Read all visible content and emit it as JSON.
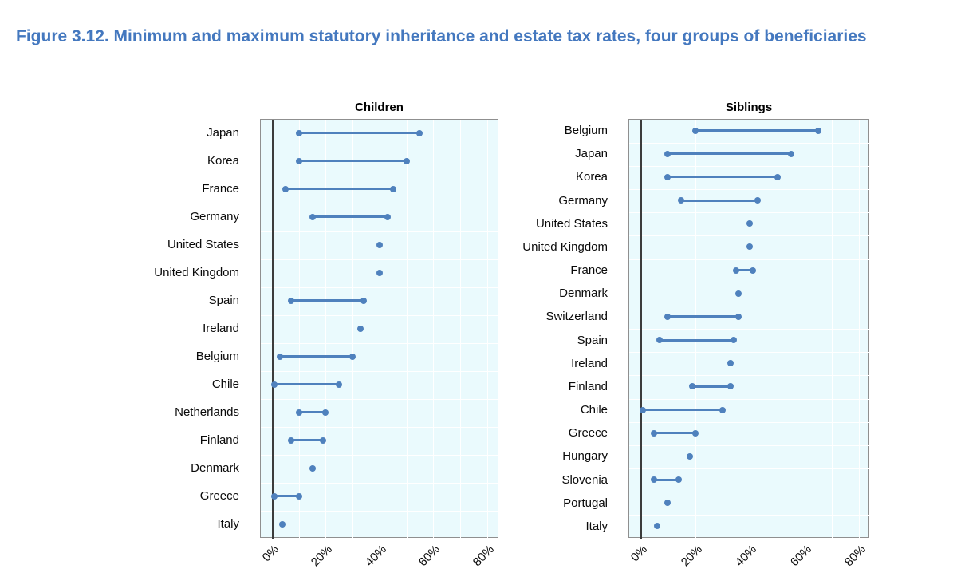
{
  "title": "Figure 3.12. Minimum and maximum statutory inheritance and estate tax rates, four groups of beneficiaries",
  "colors": {
    "title_blue": "#4478bf",
    "bar_blue": "#4f81bd",
    "plot_background": "#eafafd",
    "plot_border": "#8f8f8f",
    "axis_line": "#3c3c3c",
    "gridline": "#ffffff"
  },
  "chart_data": [
    {
      "type": "dumbbell-range",
      "title": "Children",
      "xlabel": "",
      "unit": "percent",
      "x_ticks": [
        "0%",
        "20%",
        "40%",
        "60%",
        "80%"
      ],
      "x_tick_values": [
        0,
        20,
        40,
        60,
        80
      ],
      "xlim": [
        -4.5,
        85.5
      ],
      "grid": "vertical white gridlines every 10%, horizontal white gridlines at each row boundary",
      "legend": "none",
      "points": [
        {
          "country": "Japan",
          "min": 10,
          "max": 55
        },
        {
          "country": "Korea",
          "min": 10,
          "max": 50
        },
        {
          "country": "France",
          "min": 5,
          "max": 45
        },
        {
          "country": "Germany",
          "min": 15,
          "max": 43
        },
        {
          "country": "United States",
          "min": 40,
          "max": 40
        },
        {
          "country": "United Kingdom",
          "min": 40,
          "max": 40
        },
        {
          "country": "Spain",
          "min": 7,
          "max": 34
        },
        {
          "country": "Ireland",
          "min": 33,
          "max": 33
        },
        {
          "country": "Belgium",
          "min": 3,
          "max": 30
        },
        {
          "country": "Chile",
          "min": 1,
          "max": 25
        },
        {
          "country": "Netherlands",
          "min": 10,
          "max": 20
        },
        {
          "country": "Finland",
          "min": 7,
          "max": 19
        },
        {
          "country": "Denmark",
          "min": 15,
          "max": 15
        },
        {
          "country": "Greece",
          "min": 1,
          "max": 10
        },
        {
          "country": "Italy",
          "min": 4,
          "max": 4
        }
      ]
    },
    {
      "type": "dumbbell-range",
      "title": "Siblings",
      "xlabel": "",
      "unit": "percent",
      "x_ticks": [
        "0%",
        "20%",
        "40%",
        "60%",
        "80%"
      ],
      "x_tick_values": [
        0,
        20,
        40,
        60,
        80
      ],
      "xlim": [
        -4.5,
        85.5
      ],
      "grid": "vertical white gridlines every 10%, horizontal white gridlines at each row boundary",
      "legend": "none",
      "points": [
        {
          "country": "Belgium",
          "min": 20,
          "max": 65
        },
        {
          "country": "Japan",
          "min": 10,
          "max": 55
        },
        {
          "country": "Korea",
          "min": 10,
          "max": 50
        },
        {
          "country": "Germany",
          "min": 15,
          "max": 43
        },
        {
          "country": "United States",
          "min": 40,
          "max": 40
        },
        {
          "country": "United Kingdom",
          "min": 40,
          "max": 40
        },
        {
          "country": "France",
          "min": 35,
          "max": 41
        },
        {
          "country": "Denmark",
          "min": 36,
          "max": 36
        },
        {
          "country": "Switzerland",
          "min": 10,
          "max": 36
        },
        {
          "country": "Spain",
          "min": 7,
          "max": 34
        },
        {
          "country": "Ireland",
          "min": 33,
          "max": 33
        },
        {
          "country": "Finland",
          "min": 19,
          "max": 33
        },
        {
          "country": "Chile",
          "min": 1,
          "max": 30
        },
        {
          "country": "Greece",
          "min": 5,
          "max": 20
        },
        {
          "country": "Hungary",
          "min": 18,
          "max": 18
        },
        {
          "country": "Slovenia",
          "min": 5,
          "max": 14
        },
        {
          "country": "Portugal",
          "min": 10,
          "max": 10
        },
        {
          "country": "Italy",
          "min": 6,
          "max": 6
        }
      ]
    }
  ]
}
